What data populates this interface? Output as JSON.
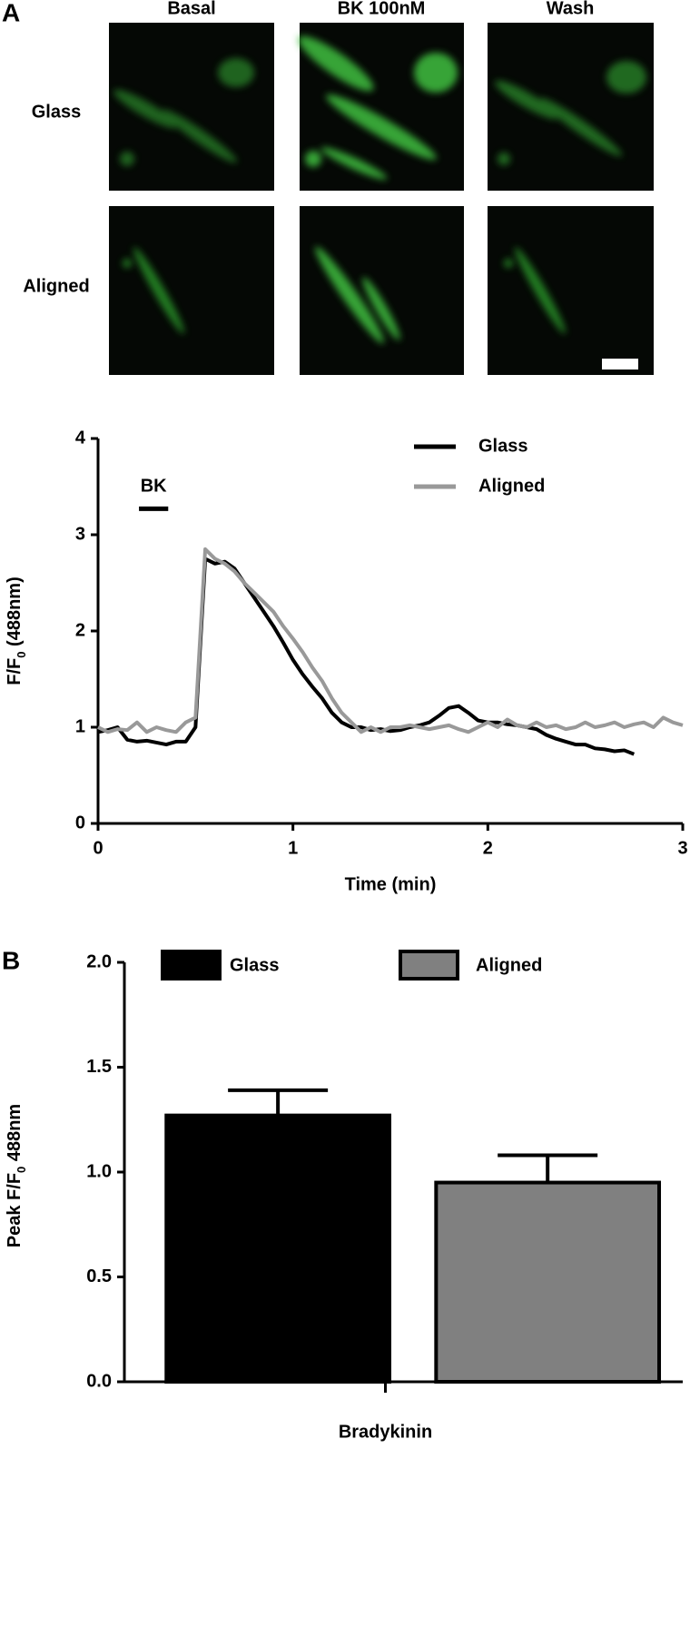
{
  "panel_a": {
    "label": "A",
    "columns": [
      "Basal",
      "BK 100nM",
      "Wash"
    ],
    "rows": [
      "Glass",
      "Aligned"
    ]
  },
  "panel_b": {
    "label": "B"
  },
  "chart_data": [
    {
      "type": "line",
      "x": [
        0,
        0.05,
        0.1,
        0.15,
        0.2,
        0.25,
        0.3,
        0.35,
        0.4,
        0.45,
        0.5,
        0.55,
        0.6,
        0.65,
        0.7,
        0.75,
        0.8,
        0.85,
        0.9,
        0.95,
        1.0,
        1.05,
        1.1,
        1.15,
        1.2,
        1.25,
        1.3,
        1.35,
        1.4,
        1.45,
        1.5,
        1.55,
        1.6,
        1.65,
        1.7,
        1.75,
        1.8,
        1.85,
        1.9,
        1.95,
        2.0,
        2.05,
        2.1,
        2.15,
        2.2,
        2.25,
        2.3,
        2.35,
        2.4,
        2.45,
        2.5,
        2.55,
        2.6,
        2.65,
        2.7,
        2.75,
        2.8,
        2.85,
        2.9,
        2.95,
        3.0
      ],
      "series": [
        {
          "name": "Glass",
          "color": "#000000",
          "values": [
            0.95,
            0.97,
            1.0,
            0.87,
            0.85,
            0.86,
            0.84,
            0.82,
            0.85,
            0.85,
            1.0,
            2.75,
            2.7,
            2.72,
            2.65,
            2.5,
            2.35,
            2.2,
            2.05,
            1.88,
            1.7,
            1.55,
            1.42,
            1.3,
            1.15,
            1.05,
            1.0,
            1.0,
            0.97,
            0.98,
            0.96,
            0.97,
            1.0,
            1.02,
            1.05,
            1.12,
            1.2,
            1.22,
            1.15,
            1.07,
            1.05,
            1.05,
            1.03,
            1.02,
            1.0,
            0.98,
            0.92,
            0.88,
            0.85,
            0.82,
            0.82,
            0.78,
            0.77,
            0.75,
            0.76,
            0.72,
            null,
            null,
            null,
            null,
            null
          ]
        },
        {
          "name": "Aligned",
          "color": "#999999",
          "values": [
            1.0,
            0.95,
            0.98,
            0.97,
            1.05,
            0.95,
            1.0,
            0.97,
            0.95,
            1.05,
            1.1,
            2.85,
            2.75,
            2.7,
            2.62,
            2.5,
            2.4,
            2.3,
            2.2,
            2.05,
            1.92,
            1.78,
            1.62,
            1.48,
            1.3,
            1.15,
            1.05,
            0.95,
            1.0,
            0.95,
            1.0,
            1.0,
            1.02,
            1.0,
            0.98,
            1.0,
            1.02,
            0.98,
            0.95,
            1.0,
            1.05,
            1.0,
            1.08,
            1.02,
            1.0,
            1.05,
            1.0,
            1.02,
            0.98,
            1.0,
            1.05,
            1.0,
            1.02,
            1.05,
            1.0,
            1.03,
            1.05,
            1.0,
            1.1,
            1.05,
            1.02
          ]
        }
      ],
      "xlim": [
        0,
        3
      ],
      "xticks": [
        0,
        1,
        2,
        3
      ],
      "ylim": [
        0,
        4
      ],
      "yticks": [
        0,
        1,
        2,
        3,
        4
      ],
      "x_label": "Time (min)",
      "y_label": [
        "F/F",
        "0",
        " (488nm)"
      ],
      "annotations": [
        {
          "text": "BK",
          "x": [
            0.21,
            0.36
          ],
          "y": 3.27
        }
      ],
      "legend": "upper right"
    },
    {
      "type": "bar",
      "categories": [
        "Bradykinin"
      ],
      "series": [
        {
          "name": "Glass",
          "color": "#000000",
          "values": [
            1.27
          ],
          "errors": [
            0.12
          ]
        },
        {
          "name": "Aligned",
          "color": "#808080",
          "values": [
            0.95
          ],
          "errors": [
            0.13
          ]
        }
      ],
      "ylim": [
        0,
        2
      ],
      "yticks": [
        {
          "value": 0,
          "label": "0.0"
        },
        {
          "value": 0.5,
          "label": "0.5"
        },
        {
          "value": 1,
          "label": "1.0"
        },
        {
          "value": 1.5,
          "label": "1.5"
        },
        {
          "value": 2,
          "label": "2.0"
        }
      ],
      "y_label": [
        "Peak F/F",
        "0",
        " 488nm"
      ],
      "legend": "top"
    }
  ]
}
